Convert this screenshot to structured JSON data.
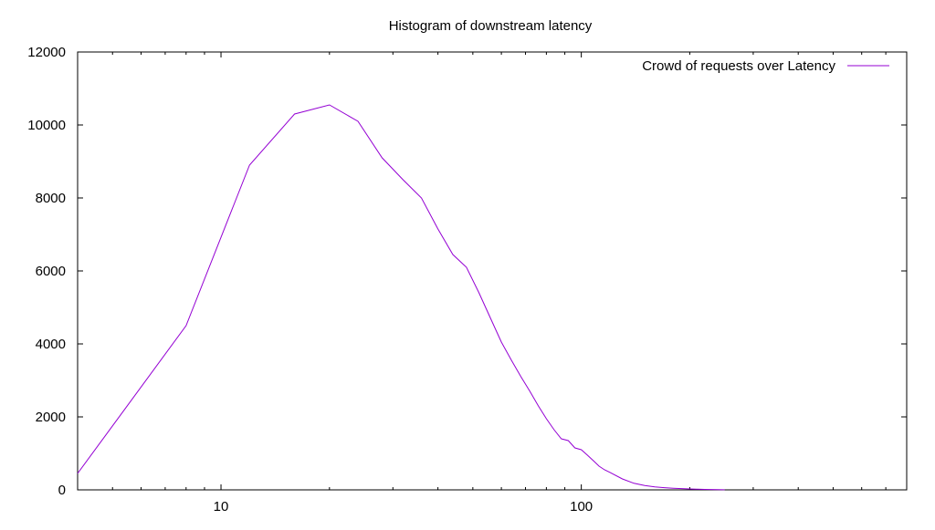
{
  "chart_data": {
    "type": "line",
    "title": "Histogram of downstream latency",
    "xlabel": "",
    "ylabel": "",
    "x_scale": "log",
    "xlim": [
      4,
      800
    ],
    "ylim": [
      0,
      12000
    ],
    "x_ticks": [
      10,
      100
    ],
    "x_tick_labels": [
      "10",
      "100"
    ],
    "y_ticks": [
      0,
      2000,
      4000,
      6000,
      8000,
      10000,
      12000
    ],
    "y_tick_labels": [
      "0",
      "2000",
      "4000",
      "6000",
      "8000",
      "10000",
      "12000"
    ],
    "grid": false,
    "legend_position": "top-right",
    "series": [
      {
        "name": "Crowd of requests over Latency",
        "color": "#9400d3",
        "x": [
          4,
          8,
          12,
          16,
          20,
          24,
          28,
          32,
          36,
          40,
          44,
          48,
          52,
          56,
          60,
          64,
          68,
          72,
          76,
          80,
          84,
          88,
          92,
          96,
          100,
          104,
          108,
          112,
          116,
          120,
          130,
          140,
          150,
          160,
          170,
          180,
          190,
          200,
          210,
          220,
          230,
          240,
          250
        ],
        "y": [
          450,
          4500,
          8900,
          10300,
          10550,
          10100,
          9100,
          8500,
          8000,
          7150,
          6450,
          6100,
          5400,
          4700,
          4050,
          3550,
          3100,
          2700,
          2300,
          1950,
          1650,
          1400,
          1350,
          1150,
          1100,
          950,
          800,
          650,
          550,
          480,
          300,
          180,
          120,
          80,
          60,
          45,
          35,
          25,
          18,
          12,
          8,
          5,
          3
        ]
      }
    ]
  }
}
